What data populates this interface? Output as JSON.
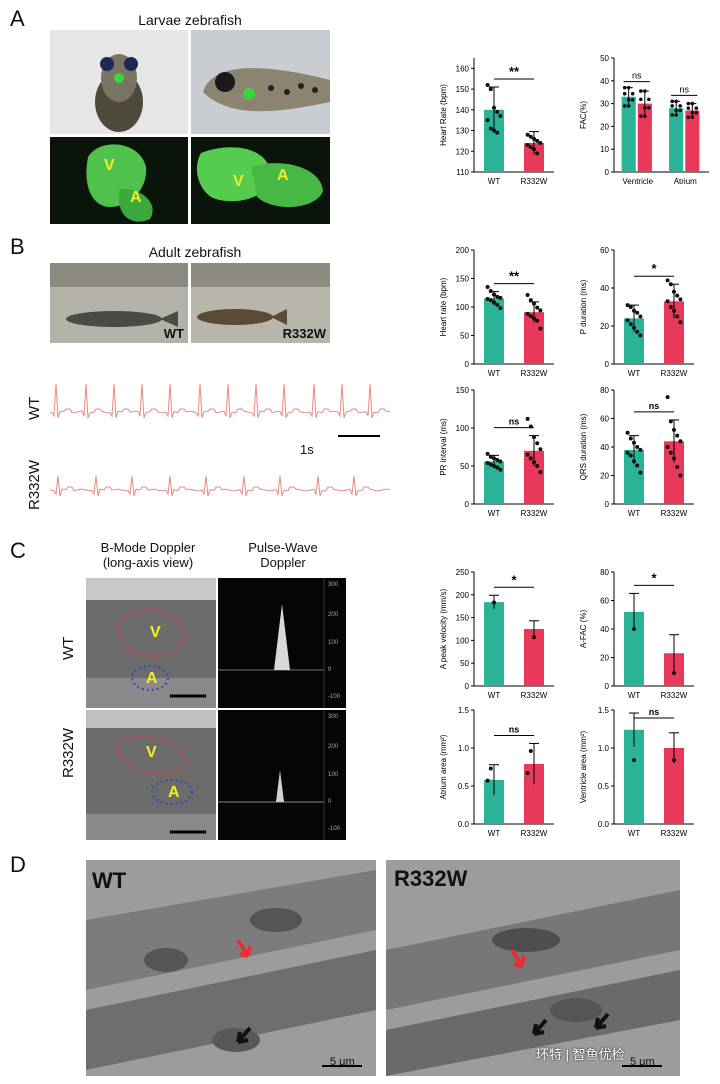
{
  "panels": {
    "A": {
      "letter": "A",
      "title": "Larvae zebrafish",
      "labels": {
        "v": "V",
        "a": "A"
      }
    },
    "B": {
      "letter": "B",
      "title": "Adult zebrafish",
      "photo_labels": [
        "WT",
        "R332W"
      ],
      "traces": [
        "WT",
        "R332W"
      ],
      "scale": "1s"
    },
    "C": {
      "letter": "C",
      "col1": "B-Mode Doppler\n(long-axis view)",
      "col2": "Pulse-Wave\nDoppler",
      "rows": [
        "WT",
        "R332W"
      ],
      "labels": {
        "v": "V",
        "a": "A"
      },
      "pw_ticks": [
        "300",
        "200",
        "100",
        "0",
        "-100"
      ]
    },
    "D": {
      "letter": "D",
      "labels": [
        "WT",
        "R332W"
      ],
      "scale": "5 μm",
      "watermark": "环特 | 智鱼优检"
    }
  },
  "colors": {
    "wt": "#2bb397",
    "mut": "#e8395a"
  },
  "chart_data": [
    {
      "id": "a-hr",
      "type": "bar",
      "ylabel": "Heart Rate (bpm)",
      "categories": [
        "WT",
        "R332W"
      ],
      "values": [
        140,
        124
      ],
      "errors": [
        11,
        5.5
      ],
      "ylim": [
        110,
        165
      ],
      "yticks": [
        110,
        120,
        130,
        140,
        150,
        160
      ],
      "points": [
        [
          152,
          150,
          141,
          139,
          137,
          135,
          131,
          130,
          129
        ],
        [
          128,
          127,
          126,
          125,
          124,
          123,
          122,
          121,
          119
        ]
      ],
      "sig": [
        {
          "from": 0,
          "to": 1,
          "text": "**"
        }
      ]
    },
    {
      "id": "a-fac",
      "type": "bar",
      "ylabel": "FAC(%)",
      "categories": [
        "Ventricle",
        "Atrium"
      ],
      "series": [
        {
          "name": "WT",
          "values": [
            33,
            28
          ],
          "errors": [
            4,
            3
          ]
        },
        {
          "name": "R332W",
          "values": [
            30,
            27
          ],
          "errors": [
            5.5,
            3
          ]
        }
      ],
      "ylim": [
        0,
        50
      ],
      "yticks": [
        0,
        10,
        20,
        30,
        40,
        50
      ],
      "sig": [
        {
          "text": "ns"
        },
        {
          "text": "ns"
        }
      ]
    },
    {
      "id": "b-hr",
      "type": "bar",
      "ylabel": "Heart rate (bpm)",
      "categories": [
        "WT",
        "R332W"
      ],
      "values": [
        115,
        91
      ],
      "errors": [
        12,
        18
      ],
      "ylim": [
        0,
        200
      ],
      "yticks": [
        0,
        50,
        100,
        150,
        200
      ],
      "points": [
        [
          135,
          128,
          122,
          118,
          116,
          114,
          112,
          108,
          104,
          98
        ],
        [
          121,
          112,
          106,
          99,
          94,
          88,
          84,
          80,
          76,
          62
        ]
      ],
      "sig": [
        {
          "from": 0,
          "to": 1,
          "text": "**"
        }
      ]
    },
    {
      "id": "b-p",
      "type": "bar",
      "ylabel": "P duration (ms)",
      "categories": [
        "WT",
        "R332W"
      ],
      "values": [
        24,
        33
      ],
      "errors": [
        7,
        9
      ],
      "ylim": [
        0,
        60
      ],
      "yticks": [
        0,
        20,
        40,
        60
      ],
      "points": [
        [
          31,
          30,
          28,
          27,
          25,
          23,
          21,
          19,
          17,
          15
        ],
        [
          44,
          42,
          38,
          36,
          34,
          33,
          30,
          28,
          25,
          22
        ]
      ],
      "sig": [
        {
          "from": 0,
          "to": 1,
          "text": "*"
        }
      ]
    },
    {
      "id": "b-pr",
      "type": "bar",
      "ylabel": "PR interval (ms)",
      "categories": [
        "WT",
        "R332W"
      ],
      "values": [
        56,
        70
      ],
      "errors": [
        8,
        20
      ],
      "ylim": [
        0,
        150
      ],
      "yticks": [
        0,
        50,
        100,
        150
      ],
      "points": [
        [
          66,
          62,
          60,
          58,
          56,
          54,
          52,
          50,
          48,
          45
        ],
        [
          112,
          102,
          88,
          80,
          72,
          65,
          60,
          55,
          50,
          42
        ]
      ],
      "sig": [
        {
          "from": 0,
          "to": 1,
          "text": "ns"
        }
      ]
    },
    {
      "id": "b-qrs",
      "type": "bar",
      "ylabel": "QRS duration (ms)",
      "categories": [
        "WT",
        "R332W"
      ],
      "values": [
        38,
        44
      ],
      "errors": [
        10,
        15
      ],
      "ylim": [
        0,
        80
      ],
      "yticks": [
        0,
        20,
        40,
        60,
        80
      ],
      "points": [
        [
          50,
          46,
          43,
          40,
          38,
          36,
          34,
          30,
          27,
          22
        ],
        [
          75,
          58,
          52,
          48,
          44,
          40,
          36,
          32,
          26,
          20
        ]
      ],
      "sig": [
        {
          "from": 0,
          "to": 1,
          "text": "ns"
        }
      ]
    },
    {
      "id": "c-apv",
      "type": "bar",
      "ylabel": "A peak velocity (mm/s)",
      "categories": [
        "WT",
        "R332W"
      ],
      "values": [
        184,
        125
      ],
      "errors": [
        15,
        18
      ],
      "ylim": [
        0,
        250
      ],
      "yticks": [
        0,
        50,
        100,
        150,
        200,
        250
      ],
      "points": [
        [
          183
        ],
        [
          107
        ]
      ],
      "sig": [
        {
          "from": 0,
          "to": 1,
          "text": "*"
        }
      ]
    },
    {
      "id": "c-afac",
      "type": "bar",
      "ylabel": "A-FAC (%)",
      "categories": [
        "WT",
        "R332W"
      ],
      "values": [
        52,
        23
      ],
      "errors": [
        13,
        13
      ],
      "ylim": [
        0,
        80
      ],
      "yticks": [
        0,
        20,
        40,
        60,
        80
      ],
      "points": [
        [
          40
        ],
        [
          9
        ]
      ],
      "sig": [
        {
          "from": 0,
          "to": 1,
          "text": "*"
        }
      ]
    },
    {
      "id": "c-atrium",
      "type": "bar",
      "ylabel": "Atrium area (mm²)",
      "categories": [
        "WT",
        "R332W"
      ],
      "values": [
        0.58,
        0.79
      ],
      "errors": [
        0.2,
        0.27
      ],
      "ylim": [
        0,
        1.5
      ],
      "yticks": [
        0.0,
        0.5,
        1.0,
        1.5
      ],
      "points": [
        [
          0.57,
          0.73
        ],
        [
          0.67,
          0.96
        ]
      ],
      "sig": [
        {
          "from": 0,
          "to": 1,
          "text": "ns"
        }
      ]
    },
    {
      "id": "c-vent",
      "type": "bar",
      "ylabel": "Ventricle area (mm²)",
      "categories": [
        "WT",
        "R332W"
      ],
      "values": [
        1.24,
        1.0
      ],
      "errors": [
        0.22,
        0.2
      ],
      "ylim": [
        0,
        1.5
      ],
      "yticks": [
        0.0,
        0.5,
        1.0,
        1.5
      ],
      "points": [
        [
          0.84
        ],
        [
          0.84
        ]
      ],
      "sig": [
        {
          "from": 0,
          "to": 1,
          "text": "ns"
        }
      ]
    }
  ]
}
